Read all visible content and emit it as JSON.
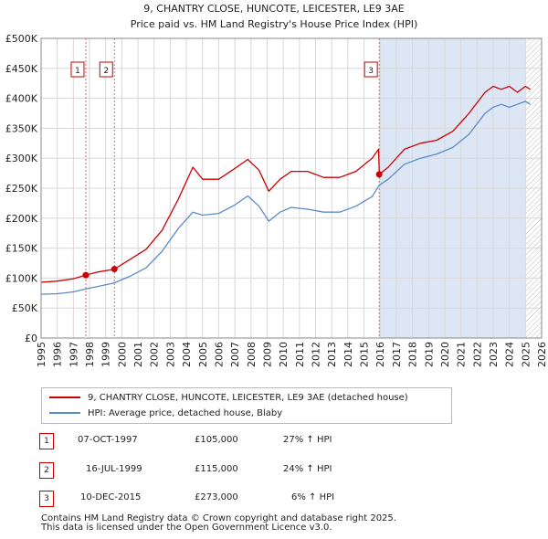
{
  "chart_data": {
    "type": "line",
    "title": "9, CHANTRY CLOSE, HUNCOTE, LEICESTER, LE9 3AE",
    "subtitle": "Price paid vs. HM Land Registry's House Price Index (HPI)",
    "xlim": [
      1995,
      2026
    ],
    "ylim": [
      0,
      500000
    ],
    "x_ticks": [
      1995,
      1996,
      1997,
      1998,
      1999,
      2000,
      2001,
      2002,
      2003,
      2004,
      2005,
      2006,
      2007,
      2008,
      2009,
      2010,
      2011,
      2012,
      2013,
      2014,
      2015,
      2016,
      2017,
      2018,
      2019,
      2020,
      2021,
      2022,
      2023,
      2024,
      2025,
      2026
    ],
    "y_ticks": [
      {
        "value": 0,
        "label": "£0"
      },
      {
        "value": 50000,
        "label": "£50K"
      },
      {
        "value": 100000,
        "label": "£100K"
      },
      {
        "value": 150000,
        "label": "£150K"
      },
      {
        "value": 200000,
        "label": "£200K"
      },
      {
        "value": 250000,
        "label": "£250K"
      },
      {
        "value": 300000,
        "label": "£300K"
      },
      {
        "value": 350000,
        "label": "£350K"
      },
      {
        "value": 400000,
        "label": "£400K"
      },
      {
        "value": 450000,
        "label": "£450K"
      },
      {
        "value": 500000,
        "label": "£500K"
      }
    ],
    "grid": true,
    "series": [
      {
        "name": "9, CHANTRY CLOSE, HUNCOTE, LEICESTER, LE9 3AE (detached house)",
        "color": "#cc0000",
        "x": [
          1995.0,
          1996.0,
          1997.0,
          1997.77,
          1998.5,
          1999.54,
          2000.5,
          2001.5,
          2002.5,
          2003.5,
          2004.4,
          2005.0,
          2006.0,
          2007.0,
          2007.8,
          2008.5,
          2009.1,
          2009.8,
          2010.5,
          2011.5,
          2012.5,
          2013.5,
          2014.5,
          2015.5,
          2015.9,
          2015.95,
          2016.5,
          2017.5,
          2018.5,
          2019.5,
          2020.5,
          2021.5,
          2022.5,
          2023.0,
          2023.5,
          2024.0,
          2024.5,
          2025.0,
          2025.3
        ],
        "values": [
          93000,
          95000,
          99000,
          105000,
          110000,
          115000,
          131000,
          148000,
          180000,
          232000,
          285000,
          265000,
          265000,
          283000,
          298000,
          280000,
          245000,
          265000,
          278000,
          278000,
          268000,
          268000,
          278000,
          300000,
          315000,
          273000,
          285000,
          315000,
          325000,
          330000,
          345000,
          375000,
          410000,
          420000,
          415000,
          420000,
          410000,
          420000,
          415000
        ]
      },
      {
        "name": "HPI: Average price, detached house, Blaby",
        "color": "#5a8ac8",
        "x": [
          1995.0,
          1996.0,
          1997.0,
          1997.77,
          1998.5,
          1999.54,
          2000.5,
          2001.5,
          2002.5,
          2003.5,
          2004.4,
          2005.0,
          2006.0,
          2007.0,
          2007.8,
          2008.5,
          2009.1,
          2009.8,
          2010.5,
          2011.5,
          2012.5,
          2013.5,
          2014.5,
          2015.5,
          2015.95,
          2016.5,
          2017.5,
          2018.5,
          2019.5,
          2020.5,
          2021.5,
          2022.5,
          2023.0,
          2023.5,
          2024.0,
          2024.5,
          2025.0,
          2025.3
        ],
        "values": [
          73000,
          74000,
          77000,
          82000,
          86000,
          92000,
          103000,
          117000,
          145000,
          183000,
          210000,
          205000,
          208000,
          222000,
          237000,
          220000,
          195000,
          210000,
          218000,
          215000,
          210000,
          210000,
          220000,
          236000,
          255000,
          265000,
          290000,
          300000,
          307000,
          318000,
          340000,
          375000,
          385000,
          390000,
          385000,
          390000,
          395000,
          390000
        ]
      }
    ],
    "annotations": [
      {
        "label": "1",
        "x": 1997.77
      },
      {
        "label": "2",
        "x": 1999.54
      },
      {
        "label": "3",
        "x": 2015.94
      }
    ],
    "sale_points": [
      {
        "x": 1997.77,
        "value": 105000
      },
      {
        "x": 1999.54,
        "value": 115000
      },
      {
        "x": 2015.94,
        "value": 273000
      }
    ],
    "forecast_from": 2025.0,
    "legend_position": "bottom"
  },
  "sales": [
    {
      "num": "1",
      "date": "07-OCT-1997",
      "price": "£105,000",
      "hpi": "27% ↑ HPI"
    },
    {
      "num": "2",
      "date": "16-JUL-1999",
      "price": "£115,000",
      "hpi": "24% ↑ HPI"
    },
    {
      "num": "3",
      "date": "10-DEC-2015",
      "price": "£273,000",
      "hpi": "6% ↑ HPI"
    }
  ],
  "footer": {
    "line1": "Contains HM Land Registry data © Crown copyright and database right 2025.",
    "line2": "This data is licensed under the Open Government Licence v3.0."
  },
  "colors": {
    "property": "#cc0000",
    "hpi": "#5a8ac8",
    "shade": "#dde6f5"
  }
}
